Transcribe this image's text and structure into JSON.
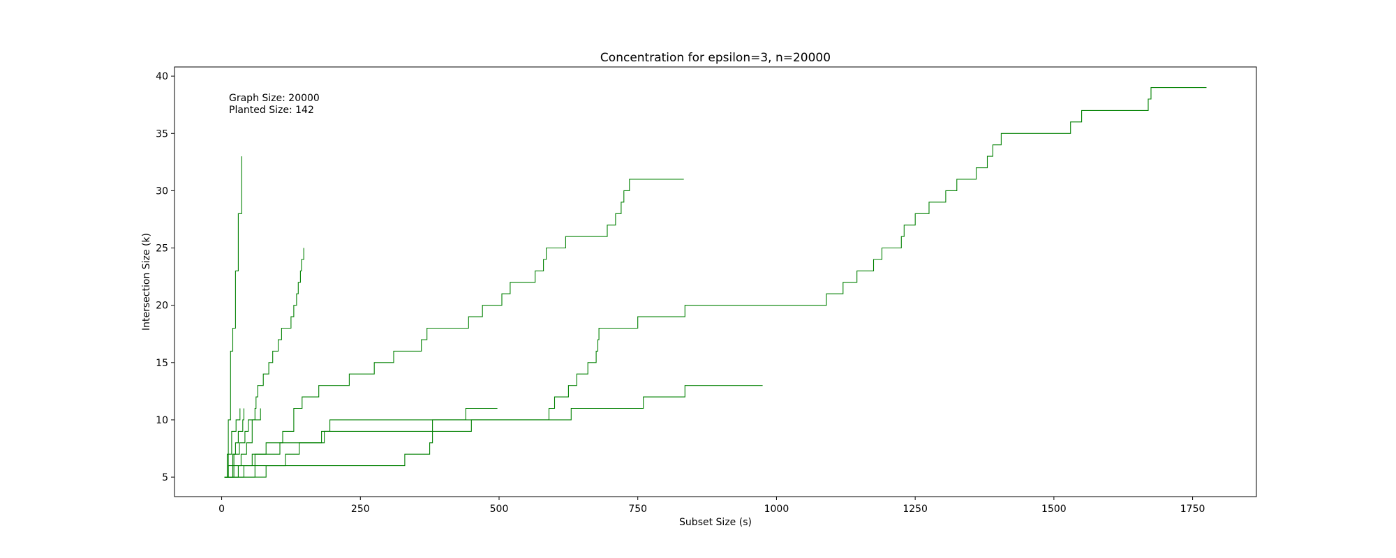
{
  "chart_data": {
    "type": "line",
    "title": "Concentration for epsilon=3, n=20000",
    "xlabel": "Subset Size (s)",
    "ylabel": "Intersection Size (k)",
    "xlim": [
      -85,
      1865
    ],
    "ylim": [
      3.3,
      40.8
    ],
    "xticks": [
      0,
      250,
      500,
      750,
      1000,
      1250,
      1500,
      1750
    ],
    "yticks": [
      5,
      10,
      15,
      20,
      25,
      30,
      35,
      40
    ],
    "annotation": [
      "Graph Size: 20000",
      "Planted Size: 142"
    ],
    "color": "#008000",
    "series": [
      {
        "steps": [
          [
            5,
            5
          ],
          [
            12,
            10
          ],
          [
            16,
            16
          ],
          [
            20,
            18
          ],
          [
            25,
            23
          ],
          [
            30,
            28
          ],
          [
            36,
            33
          ]
        ]
      },
      {
        "steps": [
          [
            5,
            5
          ],
          [
            10,
            7
          ],
          [
            18,
            9
          ],
          [
            26,
            10
          ],
          [
            33,
            11
          ]
        ]
      },
      {
        "steps": [
          [
            5,
            5
          ],
          [
            12,
            6
          ],
          [
            20,
            7
          ],
          [
            25,
            8
          ],
          [
            30,
            9
          ],
          [
            38,
            10
          ],
          [
            40,
            11
          ]
        ]
      },
      {
        "steps": [
          [
            5,
            5
          ],
          [
            20,
            6
          ],
          [
            35,
            7
          ],
          [
            45,
            8
          ],
          [
            55,
            10
          ],
          [
            70,
            11
          ]
        ]
      },
      {
        "steps": [
          [
            5,
            5
          ],
          [
            22,
            7
          ],
          [
            32,
            8
          ],
          [
            42,
            9
          ],
          [
            48,
            10
          ],
          [
            60,
            11
          ],
          [
            62,
            12
          ],
          [
            65,
            13
          ],
          [
            75,
            14
          ],
          [
            85,
            15
          ],
          [
            92,
            16
          ],
          [
            102,
            17
          ],
          [
            108,
            18
          ],
          [
            125,
            19
          ],
          [
            130,
            20
          ],
          [
            135,
            21
          ],
          [
            138,
            22
          ],
          [
            142,
            23
          ],
          [
            144,
            24
          ],
          [
            148,
            25
          ]
        ]
      },
      {
        "steps": [
          [
            5,
            5
          ],
          [
            60,
            7
          ],
          [
            80,
            8
          ],
          [
            110,
            9
          ],
          [
            130,
            11
          ],
          [
            145,
            12
          ],
          [
            175,
            13
          ],
          [
            230,
            14
          ],
          [
            275,
            15
          ],
          [
            310,
            16
          ],
          [
            360,
            17
          ],
          [
            370,
            18
          ],
          [
            445,
            19
          ],
          [
            470,
            20
          ],
          [
            505,
            21
          ],
          [
            520,
            22
          ],
          [
            565,
            23
          ],
          [
            580,
            24
          ],
          [
            585,
            25
          ],
          [
            620,
            26
          ],
          [
            695,
            27
          ],
          [
            710,
            28
          ],
          [
            720,
            29
          ],
          [
            725,
            30
          ],
          [
            735,
            31
          ],
          [
            833,
            31
          ]
        ]
      },
      {
        "steps": [
          [
            5,
            5
          ],
          [
            40,
            6
          ],
          [
            55,
            7
          ],
          [
            105,
            8
          ],
          [
            185,
            9
          ],
          [
            195,
            10
          ],
          [
            440,
            11
          ],
          [
            497,
            11
          ]
        ]
      },
      {
        "steps": [
          [
            5,
            5
          ],
          [
            80,
            6
          ],
          [
            115,
            7
          ],
          [
            140,
            8
          ],
          [
            180,
            9
          ],
          [
            380,
            10
          ],
          [
            450,
            10
          ],
          [
            590,
            11
          ],
          [
            600,
            12
          ],
          [
            625,
            13
          ],
          [
            640,
            14
          ],
          [
            660,
            15
          ],
          [
            675,
            16
          ],
          [
            678,
            17
          ],
          [
            680,
            18
          ],
          [
            750,
            19
          ],
          [
            835,
            20
          ],
          [
            1090,
            21
          ],
          [
            1120,
            22
          ],
          [
            1145,
            23
          ],
          [
            1175,
            24
          ],
          [
            1190,
            25
          ],
          [
            1225,
            26
          ],
          [
            1230,
            27
          ],
          [
            1250,
            28
          ],
          [
            1275,
            29
          ],
          [
            1305,
            30
          ],
          [
            1325,
            31
          ],
          [
            1360,
            32
          ],
          [
            1380,
            33
          ],
          [
            1390,
            34
          ],
          [
            1405,
            35
          ],
          [
            1530,
            36
          ],
          [
            1550,
            37
          ],
          [
            1670,
            38
          ],
          [
            1675,
            39
          ],
          [
            1775,
            39
          ]
        ]
      },
      {
        "steps": [
          [
            5,
            5
          ],
          [
            30,
            6
          ],
          [
            95,
            6
          ],
          [
            330,
            7
          ],
          [
            375,
            8
          ],
          [
            380,
            9
          ],
          [
            450,
            10
          ],
          [
            630,
            11
          ],
          [
            760,
            12
          ],
          [
            835,
            13
          ],
          [
            975,
            13
          ]
        ]
      }
    ]
  }
}
